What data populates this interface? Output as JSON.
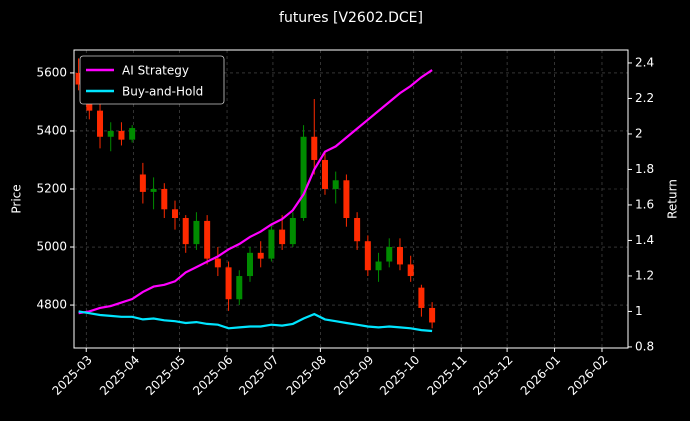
{
  "chart_data": {
    "type": "candlestick",
    "title": "futures [V2602.DCE]",
    "y_label": "Price",
    "y2_label": "Return",
    "x": [
      "2025-02-24",
      "2025-03-03",
      "2025-03-10",
      "2025-03-17",
      "2025-03-24",
      "2025-03-31",
      "2025-04-07",
      "2025-04-14",
      "2025-04-21",
      "2025-04-28",
      "2025-05-05",
      "2025-05-12",
      "2025-05-19",
      "2025-05-26",
      "2025-06-02",
      "2025-06-09",
      "2025-06-16",
      "2025-06-23",
      "2025-06-30",
      "2025-07-07",
      "2025-07-14",
      "2025-07-21",
      "2025-07-28",
      "2025-08-04",
      "2025-08-11",
      "2025-08-18",
      "2025-08-25",
      "2025-09-01",
      "2025-09-08",
      "2025-09-15",
      "2025-09-22",
      "2025-09-29",
      "2025-10-06",
      "2025-10-13"
    ],
    "open": [
      5600,
      5560,
      5470,
      5380,
      5400,
      5370,
      5250,
      5190,
      5200,
      5130,
      5100,
      5010,
      5090,
      4960,
      4930,
      4820,
      4900,
      4980,
      4960,
      5060,
      5010,
      5100,
      5380,
      5300,
      5200,
      5230,
      5100,
      5020,
      4920,
      4950,
      5000,
      4940,
      4860,
      4790
    ],
    "high": [
      5650,
      5580,
      5500,
      5430,
      5430,
      5420,
      5290,
      5240,
      5220,
      5160,
      5110,
      5120,
      5110,
      5000,
      4950,
      4920,
      5000,
      5020,
      5080,
      5110,
      5120,
      5420,
      5510,
      5330,
      5260,
      5250,
      5120,
      5040,
      4980,
      5030,
      5030,
      4970,
      4870,
      4810
    ],
    "low": [
      5540,
      5440,
      5340,
      5330,
      5350,
      5360,
      5150,
      5130,
      5100,
      5060,
      4980,
      4990,
      4940,
      4900,
      4780,
      4800,
      4880,
      4930,
      4950,
      4990,
      5000,
      5090,
      5250,
      5180,
      5150,
      5070,
      4990,
      4900,
      4880,
      4930,
      4920,
      4880,
      4760,
      4720
    ],
    "close": [
      5560,
      5470,
      5380,
      5400,
      5370,
      5410,
      5190,
      5200,
      5130,
      5100,
      5010,
      5090,
      4960,
      4930,
      4820,
      4900,
      4980,
      4960,
      5060,
      5010,
      5100,
      5380,
      5300,
      5200,
      5230,
      5100,
      5020,
      4920,
      4950,
      5000,
      4940,
      4900,
      4790,
      4740
    ],
    "up_color": "#008c00",
    "down_color": "#ff2a00",
    "series": [
      {
        "name": "AI Strategy",
        "color": "#ff00ff",
        "axis": "y2",
        "values": [
          0.99,
          1.0,
          1.02,
          1.03,
          1.05,
          1.07,
          1.11,
          1.14,
          1.15,
          1.17,
          1.22,
          1.25,
          1.28,
          1.31,
          1.35,
          1.38,
          1.42,
          1.45,
          1.49,
          1.52,
          1.57,
          1.66,
          1.8,
          1.9,
          1.93,
          1.98,
          2.03,
          2.08,
          2.13,
          2.18,
          2.23,
          2.27,
          2.32,
          2.36
        ]
      },
      {
        "name": "Buy-and-Hold",
        "color": "#00e5ff",
        "axis": "y2",
        "values": [
          1.0,
          0.99,
          0.98,
          0.975,
          0.97,
          0.97,
          0.955,
          0.96,
          0.95,
          0.945,
          0.935,
          0.94,
          0.93,
          0.925,
          0.905,
          0.91,
          0.915,
          0.915,
          0.925,
          0.92,
          0.93,
          0.96,
          0.985,
          0.955,
          0.945,
          0.935,
          0.925,
          0.915,
          0.91,
          0.915,
          0.91,
          0.905,
          0.895,
          0.89
        ]
      }
    ],
    "xlim": [
      "2025-02-21",
      "2026-02-18"
    ],
    "xticks": [
      {
        "value": "2025-03-01",
        "label": "2025-03"
      },
      {
        "value": "2025-04-01",
        "label": "2025-04"
      },
      {
        "value": "2025-05-01",
        "label": "2025-05"
      },
      {
        "value": "2025-06-01",
        "label": "2025-06"
      },
      {
        "value": "2025-07-01",
        "label": "2025-07"
      },
      {
        "value": "2025-08-01",
        "label": "2025-08"
      },
      {
        "value": "2025-09-01",
        "label": "2025-09"
      },
      {
        "value": "2025-10-01",
        "label": "2025-10"
      },
      {
        "value": "2025-11-01",
        "label": "2025-11"
      },
      {
        "value": "2025-12-01",
        "label": "2025-12"
      },
      {
        "value": "2026-01-01",
        "label": "2026-01"
      },
      {
        "value": "2026-02-01",
        "label": "2026-02"
      }
    ],
    "ylim": [
      4652,
      5679
    ],
    "yticks": [
      4800,
      5000,
      5200,
      5400,
      5600
    ],
    "y2lim": [
      0.794,
      2.473
    ],
    "y2ticks": [
      0.8,
      1.0,
      1.2,
      1.4,
      1.6,
      1.8,
      2.0,
      2.2,
      2.4
    ],
    "grid": true,
    "legend": "upper-left"
  }
}
